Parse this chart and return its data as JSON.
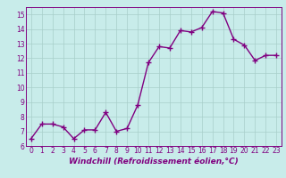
{
  "x": [
    0,
    1,
    2,
    3,
    4,
    5,
    6,
    7,
    8,
    9,
    10,
    11,
    12,
    13,
    14,
    15,
    16,
    17,
    18,
    19,
    20,
    21,
    22,
    23
  ],
  "y": [
    6.5,
    7.5,
    7.5,
    7.3,
    6.5,
    7.1,
    7.1,
    8.3,
    7.0,
    7.2,
    8.8,
    11.7,
    12.8,
    12.7,
    13.9,
    13.8,
    14.1,
    15.2,
    15.1,
    13.3,
    12.9,
    11.85,
    12.2,
    12.2
  ],
  "line_color": "#800080",
  "marker_color": "#800080",
  "bg_color": "#c8ecea",
  "grid_color": "#a8ceca",
  "xlabel": "Windchill (Refroidissement éolien,°C)",
  "ylabel": "",
  "ylim": [
    6,
    15.5
  ],
  "xlim": [
    -0.5,
    23.5
  ],
  "yticks": [
    6,
    7,
    8,
    9,
    10,
    11,
    12,
    13,
    14,
    15
  ],
  "xticks": [
    0,
    1,
    2,
    3,
    4,
    5,
    6,
    7,
    8,
    9,
    10,
    11,
    12,
    13,
    14,
    15,
    16,
    17,
    18,
    19,
    20,
    21,
    22,
    23
  ],
  "tick_color": "#800080",
  "tick_fontsize": 5.5,
  "xlabel_fontsize": 6.5,
  "line_width": 1.0,
  "marker_size": 2.5
}
